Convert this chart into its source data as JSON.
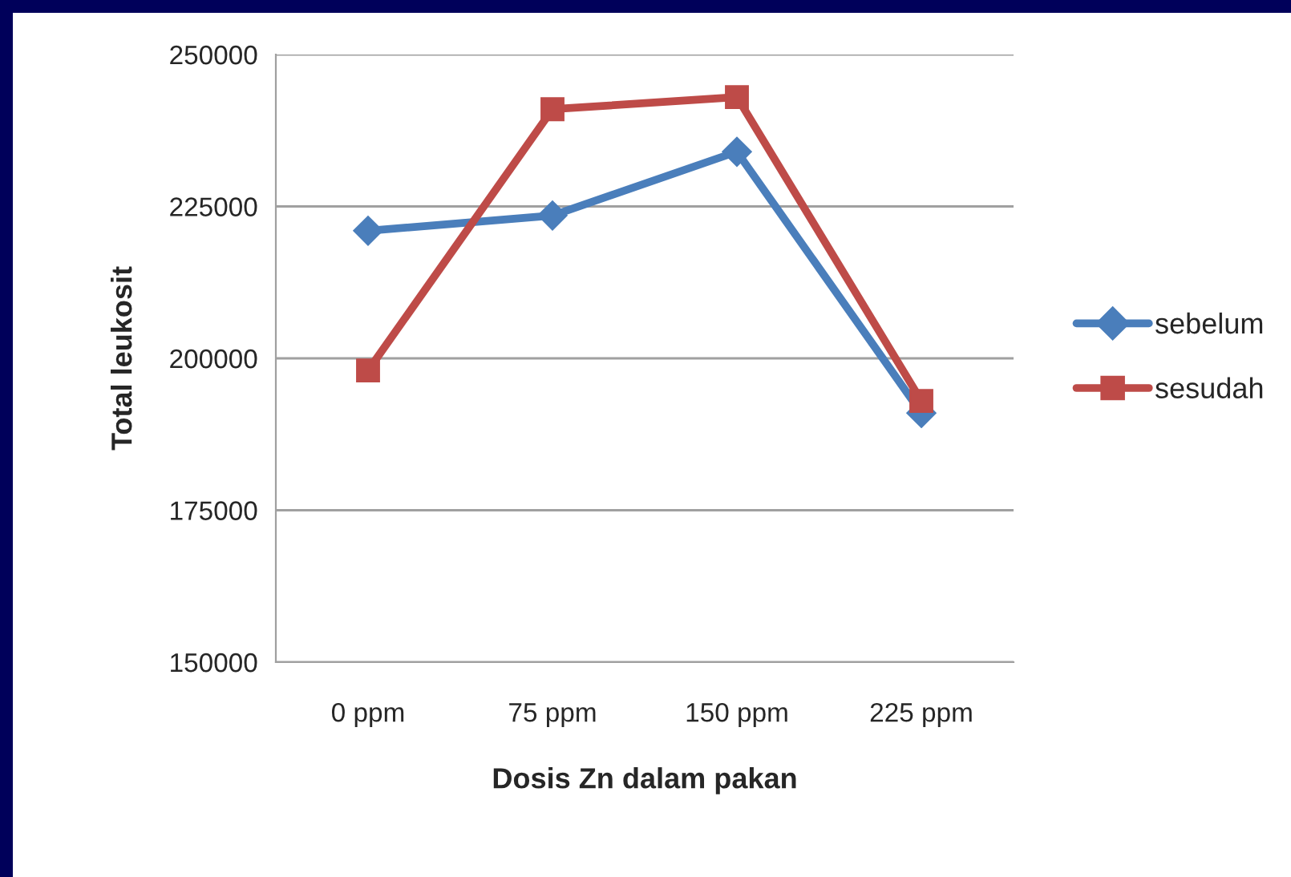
{
  "chart_data": {
    "type": "line",
    "xlabel": "Dosis Zn dalam pakan",
    "ylabel": "Total leukosit",
    "categories": [
      "0 ppm",
      "75 ppm",
      "150 ppm",
      "225 ppm"
    ],
    "series": [
      {
        "name": "sebelum",
        "color": "#4a7ebb",
        "marker": "diamond",
        "values": [
          221000,
          223500,
          234000,
          191000
        ]
      },
      {
        "name": "sesudah",
        "color": "#be4b48",
        "marker": "square",
        "values": [
          198000,
          241000,
          243000,
          193000
        ]
      }
    ],
    "ylim": [
      150000,
      250000
    ],
    "yticks": [
      150000,
      175000,
      200000,
      225000,
      250000
    ],
    "grid": "y",
    "legend": "right"
  }
}
